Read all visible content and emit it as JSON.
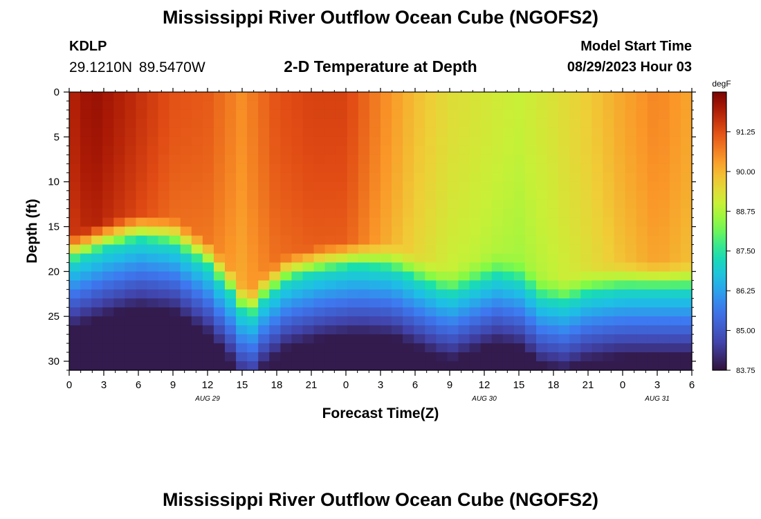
{
  "header": {
    "title": "Mississippi River Outflow Ocean Cube (NGOFS2)",
    "station_id": "KDLP",
    "station_coords": "29.1210N  89.5470W",
    "subtitle": "2-D Temperature at Depth",
    "model_start_label": "Model Start Time",
    "model_start_value": "08/29/2023 Hour 03"
  },
  "footer": {
    "title": "Mississippi River Outflow Ocean Cube (NGOFS2)"
  },
  "chart_data": {
    "type": "heatmap",
    "xlabel": "Forecast Time(Z)",
    "ylabel": "Depth (ft)",
    "x_ticks": [
      "0",
      "3",
      "6",
      "9",
      "12",
      "15",
      "18",
      "21",
      "0",
      "3",
      "6",
      "9",
      "12",
      "15",
      "18",
      "21",
      "0",
      "3",
      "6"
    ],
    "x_range_hours": [
      0,
      54
    ],
    "date_labels": [
      {
        "label": "AUG 29",
        "hour": 12
      },
      {
        "label": "AUG 30",
        "hour": 36
      },
      {
        "label": "AUG 31",
        "hour": 51
      }
    ],
    "y_ticks": [
      "0",
      "5",
      "10",
      "15",
      "20",
      "25",
      "30"
    ],
    "y_range": [
      0,
      31
    ],
    "colorbar": {
      "unit": "degF",
      "range": [
        83.75,
        92.5
      ],
      "ticks": [
        "91.25",
        "90.00",
        "88.75",
        "87.50",
        "86.25",
        "85.00",
        "83.75"
      ]
    },
    "surface_temp_degF": [
      [
        0,
        91.8
      ],
      [
        2,
        92.2
      ],
      [
        5,
        91.8
      ],
      [
        9,
        91.2
      ],
      [
        12,
        91.1
      ],
      [
        15,
        90.5
      ],
      [
        18,
        91.2
      ],
      [
        21,
        91.4
      ],
      [
        24,
        91.4
      ],
      [
        27,
        90.6
      ],
      [
        30,
        89.9
      ],
      [
        33,
        89.4
      ],
      [
        36,
        89.2
      ],
      [
        39,
        89.0
      ],
      [
        42,
        89.3
      ],
      [
        45,
        89.7
      ],
      [
        48,
        90.2
      ],
      [
        51,
        90.6
      ],
      [
        54,
        90.2
      ]
    ],
    "mixed_layer_depth_ft": [
      [
        0,
        19
      ],
      [
        3,
        17.5
      ],
      [
        6,
        16.5
      ],
      [
        9,
        17
      ],
      [
        12,
        19.5
      ],
      [
        14,
        22.5
      ],
      [
        15.5,
        25.5
      ],
      [
        17,
        23
      ],
      [
        19,
        21
      ],
      [
        22,
        20
      ],
      [
        25,
        19.5
      ],
      [
        28,
        19.8
      ],
      [
        31,
        21.5
      ],
      [
        33,
        22.5
      ],
      [
        35,
        21.5
      ],
      [
        37,
        20.5
      ],
      [
        39,
        21
      ],
      [
        41,
        23
      ],
      [
        43,
        23.5
      ],
      [
        45,
        22.5
      ],
      [
        48,
        22
      ],
      [
        51,
        22
      ],
      [
        54,
        22
      ]
    ],
    "bottom_temp_degF": 83.9
  }
}
